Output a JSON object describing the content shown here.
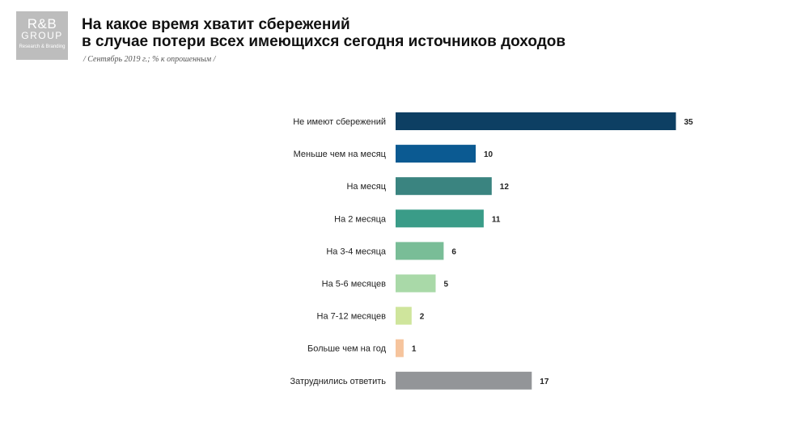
{
  "logo": {
    "main": "R&B",
    "group": "GROUP",
    "sub": "Research & Branding"
  },
  "header": {
    "title_line1": "На какое время хватит сбережений",
    "title_line2": "в случае потери всех имеющихся сегодня источников доходов",
    "subtitle": "/ Сентябрь 2019 г.; % к опрошенным /"
  },
  "chart_data": {
    "type": "bar",
    "orientation": "horizontal",
    "categories": [
      "Не имеют сбережений",
      "Меньше чем на месяц",
      "На месяц",
      "На 2 месяца",
      "На 3-4 месяца",
      "На 5-6 месяцев",
      "На 7-12 месяцев",
      "Больше чем на год",
      "Затруднились ответить"
    ],
    "values": [
      35,
      10,
      12,
      11,
      6,
      5,
      2,
      1,
      17
    ],
    "colors": [
      "#0d3f63",
      "#0b5a92",
      "#3a8480",
      "#3a9c88",
      "#79bd97",
      "#a9d9a8",
      "#cfe59c",
      "#f6c49d",
      "#939598"
    ],
    "grid": false,
    "legend": "none"
  }
}
